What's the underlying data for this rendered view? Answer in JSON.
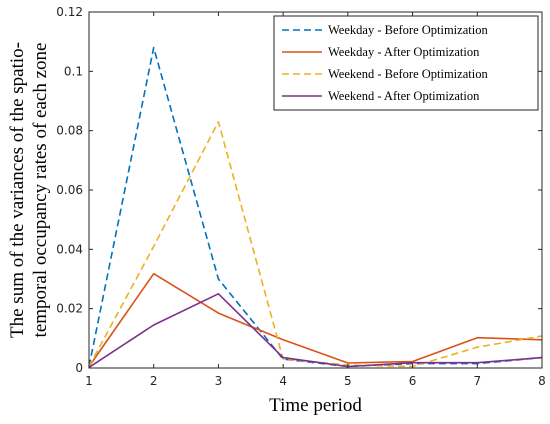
{
  "chart_data": {
    "type": "line",
    "xlabel": "Time period",
    "ylabel_lines": [
      "The sum of the variances of the spatio-",
      "temporal occupancy rates of each zone"
    ],
    "x": [
      1,
      2,
      3,
      4,
      5,
      6,
      7,
      8
    ],
    "xlim": [
      1,
      8
    ],
    "ylim": [
      0,
      0.12
    ],
    "xticks": [
      1,
      2,
      3,
      4,
      5,
      6,
      7,
      8
    ],
    "xtick_labels": [
      "1",
      "2",
      "3",
      "4",
      "5",
      "6",
      "7",
      "8"
    ],
    "yticks": [
      0,
      0.02,
      0.04,
      0.06,
      0.08,
      0.1,
      0.12
    ],
    "ytick_labels": [
      "0",
      "0.02",
      "0.04",
      "0.06",
      "0.08",
      "0.1",
      "0.12"
    ],
    "grid": false,
    "legend_position": "top-right",
    "series": [
      {
        "name": "Weekday - Before Optimization",
        "color": "#0072BD",
        "dashed": true,
        "values": [
          0.0005,
          0.108,
          0.03,
          0.003,
          0.0005,
          0.0015,
          0.0015,
          0.0035
        ]
      },
      {
        "name": "Weekday - After Optimization",
        "color": "#D95319",
        "dashed": false,
        "values": [
          0.0005,
          0.0318,
          0.0185,
          0.0095,
          0.0017,
          0.0022,
          0.0102,
          0.0095
        ]
      },
      {
        "name": "Weekend - Before Optimization",
        "color": "#EDB120",
        "dashed": true,
        "values": [
          0.0005,
          0.041,
          0.083,
          0.003,
          0.001,
          0.0005,
          0.007,
          0.0108
        ]
      },
      {
        "name": "Weekend - After Optimization",
        "color": "#7E2F8E",
        "dashed": false,
        "values": [
          0.0002,
          0.0145,
          0.025,
          0.0035,
          0.0005,
          0.0018,
          0.0018,
          0.0035
        ]
      }
    ]
  }
}
